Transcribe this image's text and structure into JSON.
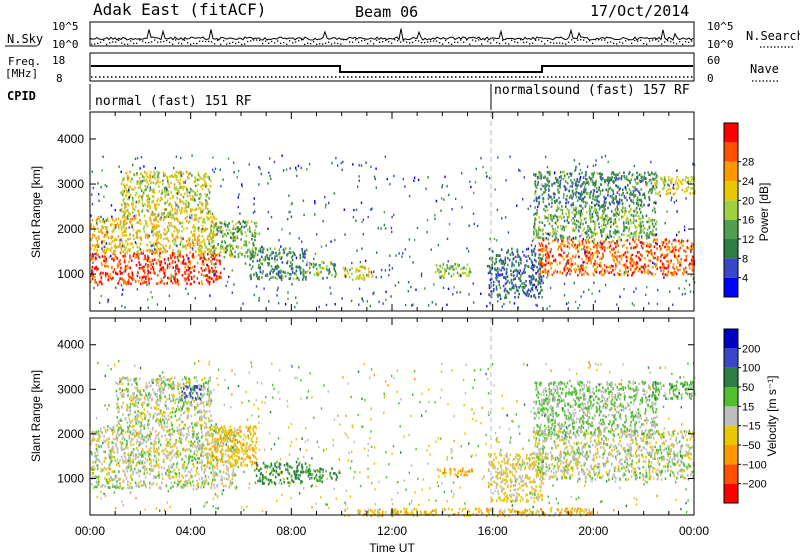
{
  "header": {
    "station": "Adak East (fitACF)",
    "beam": "Beam 06",
    "date": "17/Oct/2014"
  },
  "noise_panel": {
    "left_label": "N.Sky",
    "right_label": "N.Search",
    "left_ticks": [
      "10^5",
      "10^0"
    ],
    "right_ticks": [
      "10^5",
      "10^0"
    ]
  },
  "freq_panel": {
    "left_label_1": "Freq.",
    "left_label_2": "[MHz]",
    "right_label": "Nave",
    "left_ticks": [
      "18",
      "8"
    ],
    "right_ticks": [
      "60",
      "0"
    ]
  },
  "cpid": {
    "label": "CPID",
    "segments": [
      {
        "name": "normal (fast) 151 RF",
        "start_hour": 0
      },
      {
        "name": "normalsound (fast) 157 RF",
        "start_hour": 16
      }
    ]
  },
  "colors": {
    "power": [
      "#0000ff",
      "#3a46c8",
      "#2e7d46",
      "#50a050",
      "#a0d040",
      "#e8c800",
      "#ff9800",
      "#ff5000",
      "#ff0000"
    ],
    "velocity": [
      "#ff0000",
      "#ff5000",
      "#ff9800",
      "#e8c800",
      "#bebebe",
      "#50c030",
      "#2e7d46",
      "#3a46c8",
      "#0000c0"
    ]
  },
  "chart_data": [
    {
      "type": "heatmap",
      "name": "power-panel",
      "ylabel": "Slant Range [km]",
      "xlim": [
        0,
        24
      ],
      "ylim": [
        180,
        4600
      ],
      "y_ticks": [
        "1000",
        "2000",
        "3000",
        "4000"
      ],
      "colorbar": {
        "label": "Power [dB]",
        "ticks": [
          "4",
          "8",
          "12",
          "16",
          "20",
          "24",
          "28"
        ],
        "range": [
          0,
          32
        ]
      },
      "scatter_regions": [
        {
          "hours": [
            0,
            5.2
          ],
          "range_km": [
            800,
            1500
          ],
          "power_db": 28
        },
        {
          "hours": [
            0,
            5.0
          ],
          "range_km": [
            1500,
            2300
          ],
          "power_db": 20
        },
        {
          "hours": [
            1.2,
            4.8
          ],
          "range_km": [
            2300,
            3300
          ],
          "power_db": 18
        },
        {
          "hours": [
            4.7,
            6.6
          ],
          "range_km": [
            1400,
            2200
          ],
          "power_db": 14
        },
        {
          "hours": [
            6.3,
            8.6
          ],
          "range_km": [
            900,
            1600
          ],
          "power_db": 10
        },
        {
          "hours": [
            8.6,
            9.8
          ],
          "range_km": [
            1000,
            1300
          ],
          "power_db": 14
        },
        {
          "hours": [
            10.0,
            11.2
          ],
          "range_km": [
            900,
            1200
          ],
          "power_db": 18
        },
        {
          "hours": [
            13.7,
            15.2
          ],
          "range_km": [
            950,
            1250
          ],
          "power_db": 16
        },
        {
          "hours": [
            15.8,
            18.0
          ],
          "range_km": [
            500,
            1600
          ],
          "power_db": 8
        },
        {
          "hours": [
            17.8,
            24
          ],
          "range_km": [
            1000,
            1800
          ],
          "power_db": 26
        },
        {
          "hours": [
            17.6,
            22.5
          ],
          "range_km": [
            1800,
            2500
          ],
          "power_db": 14
        },
        {
          "hours": [
            17.6,
            22.5
          ],
          "range_km": [
            2500,
            3300
          ],
          "power_db": 10
        },
        {
          "hours": [
            22.3,
            24
          ],
          "range_km": [
            2800,
            3200
          ],
          "power_db": 18
        }
      ]
    },
    {
      "type": "heatmap",
      "name": "velocity-panel",
      "ylabel": "Slant Range [km]",
      "xlabel": "Time UT",
      "xlim": [
        0,
        24
      ],
      "x_ticks": [
        "00:00",
        "04:00",
        "08:00",
        "12:00",
        "16:00",
        "20:00",
        "00:00"
      ],
      "ylim": [
        180,
        4600
      ],
      "y_ticks": [
        "1000",
        "2000",
        "3000",
        "4000"
      ],
      "colorbar": {
        "label": "Velocity [m s⁻¹]",
        "ticks": [
          "200",
          "100",
          "50",
          "15",
          "−15",
          "−50",
          "−100",
          "−200"
        ]
      },
      "scatter_regions": [
        {
          "hours": [
            0,
            5.8
          ],
          "range_km": [
            800,
            2200
          ],
          "velocity": 0
        },
        {
          "hours": [
            1.0,
            4.8
          ],
          "range_km": [
            2200,
            3300
          ],
          "velocity": 0
        },
        {
          "hours": [
            3.6,
            4.4
          ],
          "range_km": [
            2800,
            3100
          ],
          "velocity": 150
        },
        {
          "hours": [
            4.6,
            6.6
          ],
          "range_km": [
            1300,
            2200
          ],
          "velocity": -40
        },
        {
          "hours": [
            6.5,
            8.7
          ],
          "range_km": [
            900,
            1400
          ],
          "velocity": 60
        },
        {
          "hours": [
            8.6,
            9.9
          ],
          "range_km": [
            950,
            1250
          ],
          "velocity": 60
        },
        {
          "hours": [
            13.7,
            15.2
          ],
          "range_km": [
            1050,
            1250
          ],
          "velocity": -60
        },
        {
          "hours": [
            15.8,
            18.0
          ],
          "range_km": [
            500,
            1600
          ],
          "velocity": -20
        },
        {
          "hours": [
            17.6,
            24
          ],
          "range_km": [
            1000,
            2100
          ],
          "velocity": 0
        },
        {
          "hours": [
            17.6,
            22.5
          ],
          "range_km": [
            2000,
            3200
          ],
          "velocity": 20
        },
        {
          "hours": [
            22.3,
            24
          ],
          "range_km": [
            2800,
            3200
          ],
          "velocity": 40
        },
        {
          "hours": [
            10.0,
            20.0
          ],
          "range_km": [
            180,
            350
          ],
          "velocity": -40
        }
      ]
    }
  ]
}
